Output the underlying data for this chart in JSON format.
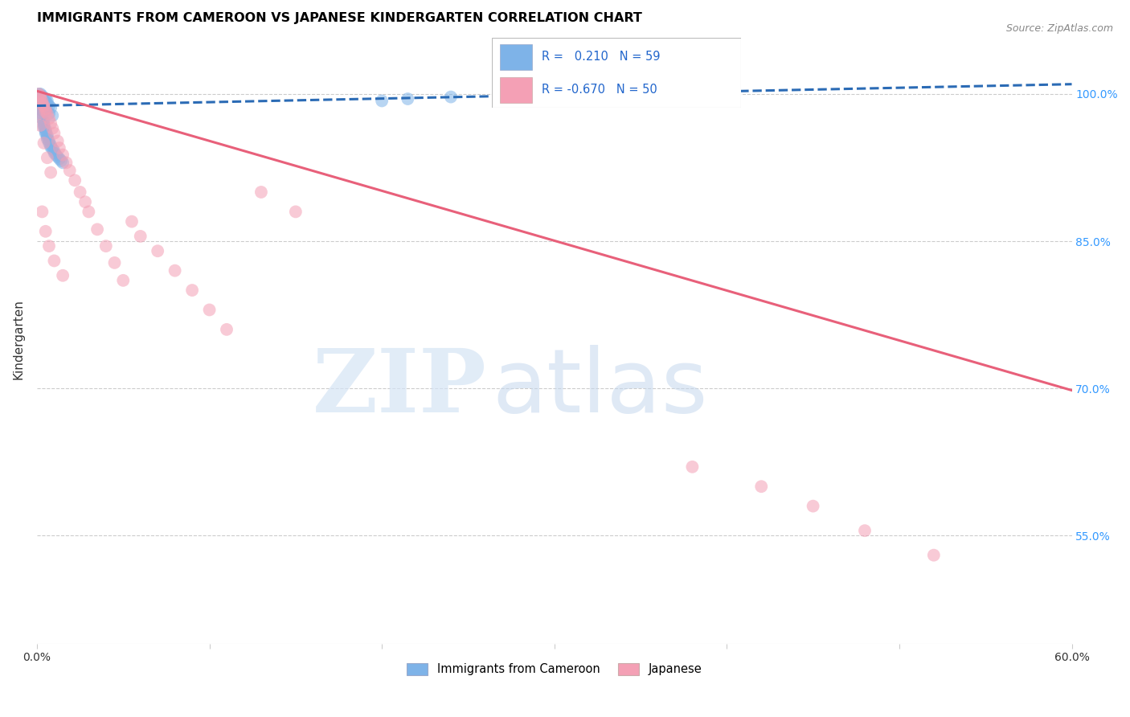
{
  "title": "IMMIGRANTS FROM CAMEROON VS JAPANESE KINDERGARTEN CORRELATION CHART",
  "source": "Source: ZipAtlas.com",
  "ylabel": "Kindergarten",
  "ytick_labels": [
    "100.0%",
    "85.0%",
    "70.0%",
    "55.0%"
  ],
  "ytick_values": [
    1.0,
    0.85,
    0.7,
    0.55
  ],
  "xlim": [
    0.0,
    0.6
  ],
  "ylim": [
    0.44,
    1.06
  ],
  "blue_R": 0.21,
  "blue_N": 59,
  "pink_R": -0.67,
  "pink_N": 50,
  "blue_color": "#7EB3E8",
  "pink_color": "#F4A0B5",
  "blue_line_color": "#2B6BB5",
  "pink_line_color": "#E8607A",
  "legend_blue_label": "Immigrants from Cameroon",
  "legend_pink_label": "Japanese",
  "blue_line_x": [
    0.0,
    0.6
  ],
  "blue_line_y": [
    0.988,
    1.01
  ],
  "pink_line_x": [
    0.0,
    0.6
  ],
  "pink_line_y": [
    1.003,
    0.698
  ],
  "blue_scatter_x": [
    0.001,
    0.002,
    0.002,
    0.002,
    0.003,
    0.003,
    0.003,
    0.003,
    0.004,
    0.004,
    0.004,
    0.004,
    0.005,
    0.005,
    0.005,
    0.006,
    0.006,
    0.006,
    0.007,
    0.007,
    0.008,
    0.008,
    0.009,
    0.01,
    0.01,
    0.011,
    0.012,
    0.013,
    0.014,
    0.015,
    0.001,
    0.002,
    0.003,
    0.004,
    0.005,
    0.006,
    0.007,
    0.008,
    0.003,
    0.004,
    0.002,
    0.003,
    0.005,
    0.006,
    0.004,
    0.003,
    0.002,
    0.005,
    0.007,
    0.009,
    0.2,
    0.215,
    0.24,
    0.27,
    0.29,
    0.31,
    0.34,
    0.36,
    0.385
  ],
  "blue_scatter_y": [
    0.995,
    0.992,
    0.988,
    0.985,
    0.983,
    0.98,
    0.978,
    0.975,
    0.972,
    0.97,
    0.968,
    0.966,
    0.964,
    0.962,
    0.96,
    0.958,
    0.956,
    0.954,
    0.952,
    0.95,
    0.948,
    0.946,
    0.944,
    0.942,
    0.94,
    0.938,
    0.936,
    0.934,
    0.932,
    0.93,
    1.0,
    0.998,
    0.996,
    0.994,
    0.992,
    0.99,
    0.988,
    0.986,
    0.984,
    0.982,
    1.0,
    0.998,
    0.995,
    0.993,
    0.99,
    0.988,
    0.985,
    0.983,
    0.98,
    0.978,
    0.993,
    0.995,
    0.997,
    0.998,
    0.999,
    1.0,
    1.0,
    1.0,
    0.999
  ],
  "pink_scatter_x": [
    0.001,
    0.002,
    0.002,
    0.003,
    0.003,
    0.004,
    0.005,
    0.005,
    0.006,
    0.007,
    0.008,
    0.009,
    0.01,
    0.012,
    0.013,
    0.015,
    0.017,
    0.019,
    0.022,
    0.025,
    0.028,
    0.03,
    0.035,
    0.04,
    0.045,
    0.05,
    0.055,
    0.06,
    0.07,
    0.08,
    0.09,
    0.1,
    0.11,
    0.13,
    0.15,
    0.003,
    0.005,
    0.007,
    0.01,
    0.015,
    0.38,
    0.42,
    0.45,
    0.48,
    0.52,
    0.001,
    0.002,
    0.004,
    0.006,
    0.008
  ],
  "pink_scatter_y": [
    1.0,
    0.998,
    0.995,
    0.993,
    0.99,
    0.988,
    0.985,
    0.982,
    0.98,
    0.975,
    0.97,
    0.965,
    0.96,
    0.952,
    0.945,
    0.938,
    0.93,
    0.922,
    0.912,
    0.9,
    0.89,
    0.88,
    0.862,
    0.845,
    0.828,
    0.81,
    0.87,
    0.855,
    0.84,
    0.82,
    0.8,
    0.78,
    0.76,
    0.9,
    0.88,
    0.88,
    0.86,
    0.845,
    0.83,
    0.815,
    0.62,
    0.6,
    0.58,
    0.555,
    0.53,
    0.98,
    0.968,
    0.95,
    0.935,
    0.92
  ]
}
